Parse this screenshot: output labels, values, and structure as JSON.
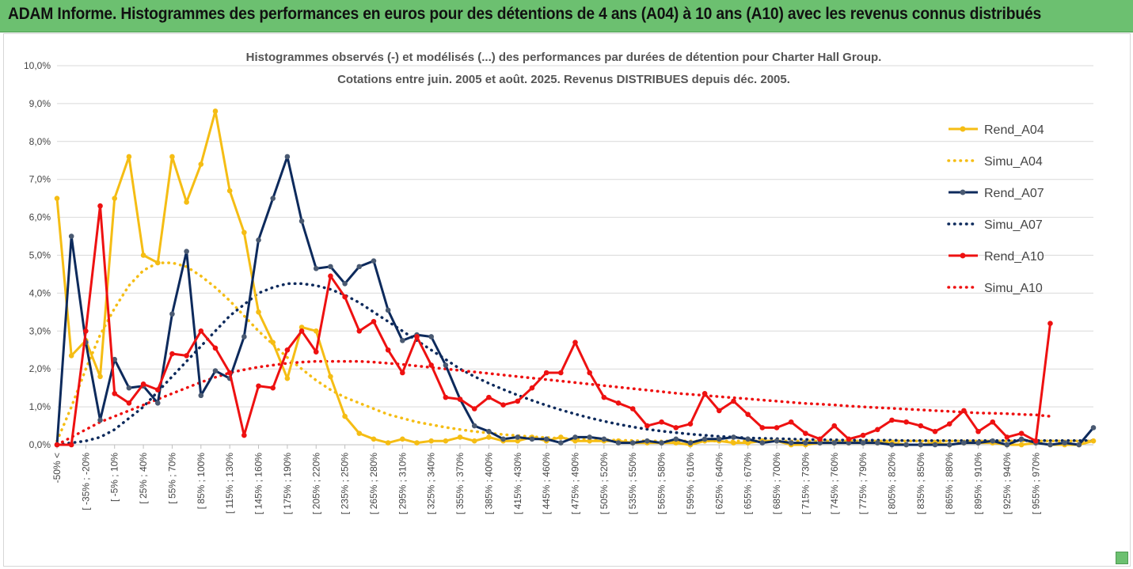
{
  "banner": {
    "title": "ADAM Informe. Histogrammes des performances en euros pour des détentions de 4 ans (A04) à 10 ans (A10) avec les revenus connus distribués"
  },
  "colors": {
    "banner_bg": "#6cc070",
    "A04": "#f5bd14",
    "A07": "#0d2a5c",
    "A10": "#ee1111",
    "grid": "#d9d9d9"
  },
  "chart_data": {
    "type": "line",
    "title_lines": [
      "Histogrammes observés (-) et modélisés (...) des performances par durées de détention pour Charter Hall Group.",
      "Cotations entre juin. 2005 et août. 2025. Revenus DISTRIBUES depuis déc. 2005."
    ],
    "ylim": [
      0,
      0.1
    ],
    "ytick_labels": [
      "0,0%",
      "1,0%",
      "2,0%",
      "3,0%",
      "4,0%",
      "5,0%",
      "6,0%",
      "7,0%",
      "8,0%",
      "9,0%",
      "10,0%"
    ],
    "xtick_labels": [
      "-50% <",
      "[ -35% ; -20%",
      "[ -5% ; 10%",
      "[ 25% ; 40%",
      "[ 55% ; 70%",
      "[ 85% ; 100%",
      "[ 115% ; 130%",
      "[ 145% ; 160%",
      "[ 175% ; 190%",
      "[ 205% ; 220%",
      "[ 235% ; 250%",
      "[ 265% ; 280%",
      "[ 295% ; 310%",
      "[ 325% ; 340%",
      "[ 355% ; 370%",
      "[ 385% ; 400%",
      "[ 415% ; 430%",
      "[ 445% ; 460%",
      "[ 475% ; 490%",
      "[ 505% ; 520%",
      "[ 535% ; 550%",
      "[ 565% ; 580%",
      "[ 595% ; 610%",
      "[ 625% ; 640%",
      "[ 655% ; 670%",
      "[ 685% ; 700%",
      "[ 715% ; 730%",
      "[ 745% ; 760%",
      "[ 775% ; 790%",
      "[ 805% ; 820%",
      "[ 835% ; 850%",
      "[ 865% ; 880%",
      "[ 895% ; 910%",
      "[ 925% ; 940%",
      "[ 955% ; 970%"
    ],
    "legend_position": "right",
    "series": [
      {
        "name": "Rend_A04",
        "style": "solid",
        "color": "#f5bd14",
        "markers": true,
        "values": [
          0.065,
          0.0235,
          0.0275,
          0.018,
          0.065,
          0.076,
          0.05,
          0.048,
          0.076,
          0.064,
          0.074,
          0.088,
          0.067,
          0.056,
          0.035,
          0.027,
          0.0175,
          0.031,
          0.03,
          0.018,
          0.0075,
          0.003,
          0.0015,
          0.0005,
          0.0015,
          0.0005,
          0.001,
          0.001,
          0.002,
          0.001,
          0.002,
          0.001,
          0.001,
          0.002,
          0.001,
          0.002,
          0.001,
          0.001,
          0.001,
          0.001,
          0.0005,
          0.0005,
          0.0005,
          0.0005,
          0.0,
          0.001,
          0.001,
          0.0005,
          0.0005,
          0.001,
          0.001,
          0.0,
          0.0,
          0.0005,
          0.0005,
          0.0005,
          0.0005,
          0.0005,
          0.0005,
          0.0,
          0.0,
          0.0005,
          0.0,
          0.0005,
          0.0005,
          0.0005,
          0.0,
          0.0,
          0.0005,
          0.0,
          0.0,
          0.0,
          0.001
        ]
      },
      {
        "name": "Simu_A04",
        "style": "dotted",
        "color": "#f5bd14",
        "markers": false,
        "values": [
          0.001,
          0.01,
          0.02,
          0.029,
          0.036,
          0.042,
          0.046,
          0.048,
          0.048,
          0.047,
          0.0445,
          0.0415,
          0.038,
          0.034,
          0.03,
          0.0265,
          0.023,
          0.02,
          0.017,
          0.0145,
          0.0125,
          0.011,
          0.0095,
          0.008,
          0.007,
          0.006,
          0.0053,
          0.0046,
          0.004,
          0.0035,
          0.0031,
          0.0027,
          0.0024,
          0.0021,
          0.0019,
          0.0017,
          0.0015,
          0.0014,
          0.0013,
          0.0012,
          0.0011,
          0.001,
          0.001,
          0.001,
          0.001,
          0.001,
          0.001,
          0.001,
          0.001,
          0.001,
          0.001,
          0.001,
          0.001,
          0.001,
          0.001,
          0.001,
          0.001,
          0.001,
          0.001,
          0.001,
          0.001,
          0.001,
          0.001,
          0.001,
          0.001,
          0.001,
          0.001,
          0.001,
          0.001,
          0.001,
          0.001,
          0.001,
          0.001
        ]
      },
      {
        "name": "Rend_A07",
        "style": "solid",
        "color": "#0d2a5c",
        "markers": true,
        "values": [
          0.0,
          0.055,
          0.027,
          0.0065,
          0.0225,
          0.015,
          0.0155,
          0.011,
          0.0345,
          0.051,
          0.013,
          0.0195,
          0.0175,
          0.0285,
          0.054,
          0.065,
          0.076,
          0.059,
          0.0465,
          0.047,
          0.0425,
          0.047,
          0.0485,
          0.0355,
          0.0275,
          0.029,
          0.0285,
          0.021,
          0.012,
          0.005,
          0.0035,
          0.0015,
          0.002,
          0.0015,
          0.0015,
          0.0005,
          0.002,
          0.002,
          0.0015,
          0.0005,
          0.0005,
          0.001,
          0.0005,
          0.0015,
          0.0005,
          0.0015,
          0.0015,
          0.002,
          0.0015,
          0.0005,
          0.001,
          0.0005,
          0.0005,
          0.0005,
          0.0005,
          0.0005,
          0.0005,
          0.0005,
          0.0,
          0.0,
          0.0,
          0.0,
          0.0,
          0.0005,
          0.0005,
          0.001,
          0.0,
          0.0015,
          0.0005,
          0.0,
          0.0005,
          0.0,
          0.0045
        ]
      },
      {
        "name": "Simu_A07",
        "style": "dotted",
        "color": "#0d2a5c",
        "markers": false,
        "values": [
          0.0,
          0.0005,
          0.001,
          0.002,
          0.004,
          0.007,
          0.01,
          0.014,
          0.018,
          0.022,
          0.026,
          0.03,
          0.034,
          0.037,
          0.04,
          0.0415,
          0.0425,
          0.0425,
          0.042,
          0.041,
          0.0395,
          0.0375,
          0.035,
          0.0325,
          0.03,
          0.0275,
          0.025,
          0.0225,
          0.02,
          0.018,
          0.0162,
          0.0146,
          0.0131,
          0.0117,
          0.0104,
          0.0092,
          0.0081,
          0.0071,
          0.0062,
          0.0054,
          0.0047,
          0.0041,
          0.0036,
          0.0032,
          0.0028,
          0.0025,
          0.0022,
          0.002,
          0.0018,
          0.0017,
          0.0016,
          0.0015,
          0.0014,
          0.0013,
          0.0013,
          0.0012,
          0.0012,
          0.0012,
          0.0012,
          0.0011,
          0.0011,
          0.0011,
          0.0011,
          0.0011,
          0.0011,
          0.0011,
          0.0011,
          0.0011,
          0.0011,
          0.0011,
          0.0011,
          0.0011,
          0.0011
        ]
      },
      {
        "name": "Rend_A10",
        "style": "solid",
        "color": "#ee1111",
        "markers": true,
        "values": [
          0.0,
          0.0,
          0.03,
          0.063,
          0.0135,
          0.011,
          0.016,
          0.0145,
          0.024,
          0.0235,
          0.03,
          0.0255,
          0.019,
          0.0025,
          0.0155,
          0.015,
          0.025,
          0.03,
          0.0245,
          0.0445,
          0.039,
          0.03,
          0.0325,
          0.025,
          0.019,
          0.0285,
          0.021,
          0.0125,
          0.012,
          0.0095,
          0.0125,
          0.0105,
          0.0115,
          0.015,
          0.019,
          0.019,
          0.027,
          0.019,
          0.0125,
          0.011,
          0.0095,
          0.005,
          0.006,
          0.0045,
          0.0055,
          0.0135,
          0.009,
          0.0115,
          0.008,
          0.0045,
          0.0045,
          0.006,
          0.003,
          0.0015,
          0.005,
          0.0015,
          0.0025,
          0.004,
          0.0065,
          0.006,
          0.005,
          0.0035,
          0.0055,
          0.009,
          0.0035,
          0.006,
          0.002,
          0.003,
          0.001,
          0.032
        ]
      },
      {
        "name": "Simu_A10",
        "style": "dotted",
        "color": "#ee1111",
        "markers": false,
        "values": [
          0.0,
          0.002,
          0.004,
          0.006,
          0.0075,
          0.009,
          0.0105,
          0.012,
          0.0135,
          0.015,
          0.0165,
          0.0178,
          0.019,
          0.0198,
          0.0205,
          0.021,
          0.0215,
          0.0218,
          0.022,
          0.022,
          0.022,
          0.022,
          0.0218,
          0.0215,
          0.0212,
          0.0208,
          0.0204,
          0.02,
          0.0196,
          0.0192,
          0.0188,
          0.0184,
          0.018,
          0.0176,
          0.0172,
          0.0168,
          0.0164,
          0.016,
          0.0156,
          0.0152,
          0.0148,
          0.0144,
          0.014,
          0.0136,
          0.0133,
          0.013,
          0.0127,
          0.0124,
          0.0121,
          0.0118,
          0.0115,
          0.0112,
          0.0109,
          0.0107,
          0.0105,
          0.0102,
          0.01,
          0.0098,
          0.0096,
          0.0094,
          0.0092,
          0.009,
          0.0088,
          0.0086,
          0.0084,
          0.0083,
          0.0082,
          0.008,
          0.0079,
          0.0075
        ]
      }
    ]
  }
}
